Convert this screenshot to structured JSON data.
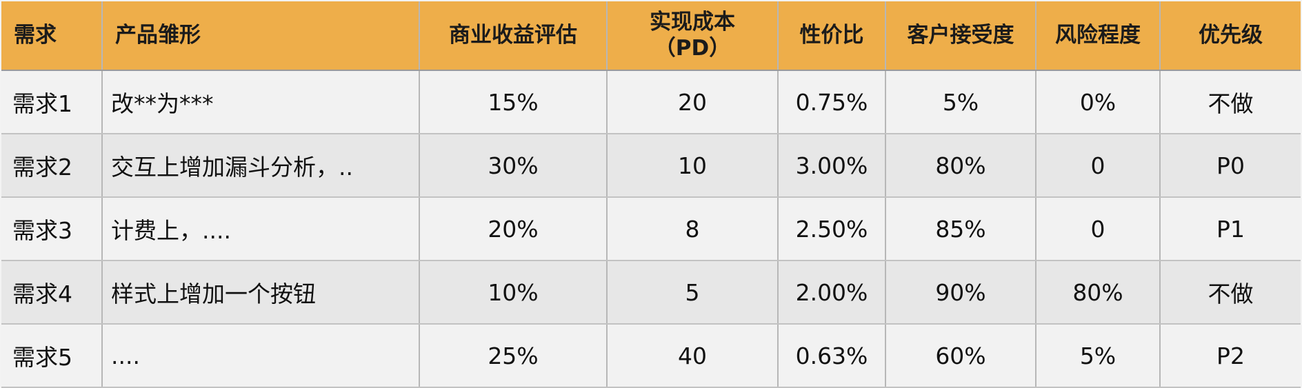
{
  "table": {
    "headers": [
      {
        "lines": [
          "需求"
        ]
      },
      {
        "lines": [
          "产品雏形"
        ]
      },
      {
        "lines": [
          "商业收益评估"
        ]
      },
      {
        "lines": [
          "实现成本",
          "（PD）"
        ]
      },
      {
        "lines": [
          "性价比"
        ]
      },
      {
        "lines": [
          "客户接受度"
        ]
      },
      {
        "lines": [
          "风险程度"
        ]
      },
      {
        "lines": [
          "优先级"
        ]
      }
    ],
    "rows": [
      [
        "需求1",
        "改**为***",
        "15%",
        "20",
        "0.75%",
        "5%",
        "0%",
        "不做"
      ],
      [
        "需求2",
        "交互上增加漏斗分析，..",
        "30%",
        "10",
        "3.00%",
        "80%",
        "0",
        "P0"
      ],
      [
        "需求3",
        "计费上，....",
        "20%",
        "8",
        "2.50%",
        "85%",
        "0",
        "P1"
      ],
      [
        "需求4",
        "样式上增加一个按钮",
        "10%",
        "5",
        "2.00%",
        "90%",
        "80%",
        "不做"
      ],
      [
        "需求5",
        "....",
        "25%",
        "40",
        "0.63%",
        "60%",
        "5%",
        "P2"
      ]
    ]
  },
  "colors": {
    "header_bg": "#eeae4a",
    "row_light": "#f2f2f2",
    "row_dark": "#e7e7e7",
    "grid": "#b7b7b7"
  }
}
